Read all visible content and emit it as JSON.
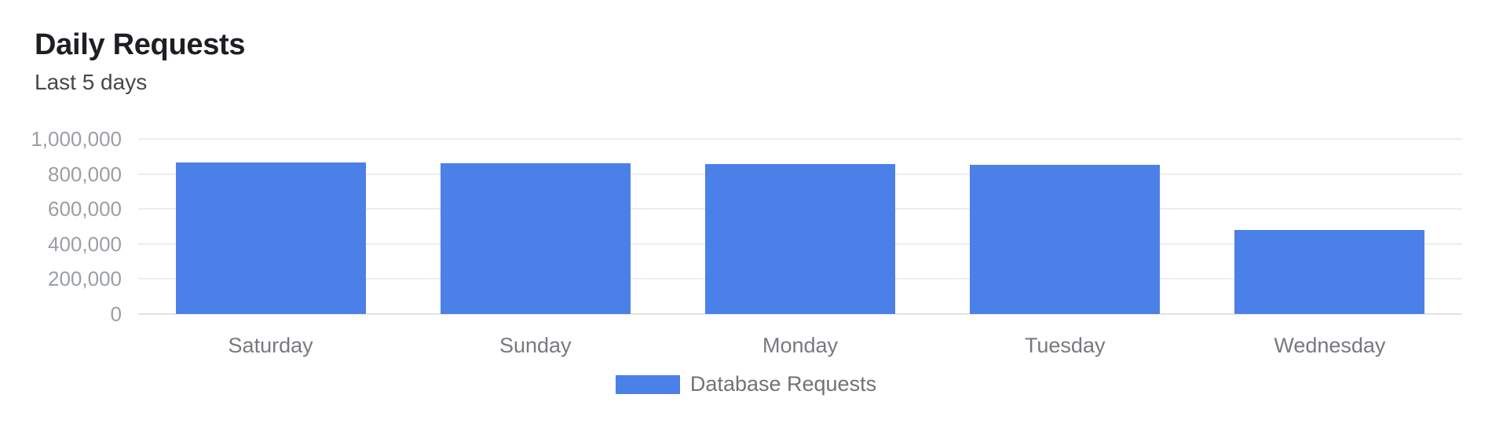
{
  "header": {
    "title": "Daily Requests",
    "subtitle": "Last 5 days"
  },
  "chart_data": {
    "type": "bar",
    "title": "Daily Requests",
    "subtitle": "Last 5 days",
    "categories": [
      "Saturday",
      "Sunday",
      "Monday",
      "Tuesday",
      "Wednesday"
    ],
    "series": [
      {
        "name": "Database Requests",
        "color": "#4b80e8",
        "values": [
          864000,
          861000,
          856000,
          851000,
          480000
        ]
      }
    ],
    "xlabel": "",
    "ylabel": "",
    "ylim": [
      0,
      1000000
    ],
    "ytick_interval": 200000,
    "yticks": [
      0,
      200000,
      400000,
      600000,
      800000,
      1000000
    ],
    "ytick_labels": [
      "0",
      "200,000",
      "400,000",
      "600,000",
      "800,000",
      "1,000,000"
    ],
    "grid": true,
    "legend_position": "bottom"
  },
  "legend": {
    "label": "Database Requests",
    "swatch_color": "#4b80e8"
  },
  "colors": {
    "bar": "#4b80e8",
    "gridline": "#ededed",
    "baseline": "#e4e4e4",
    "y_axis_label": "#9b9fa4",
    "x_axis_label": "#76797e",
    "title": "#1d1f23",
    "subtitle": "#45484d",
    "legend_text": "#6f7377",
    "background": "#ffffff"
  }
}
